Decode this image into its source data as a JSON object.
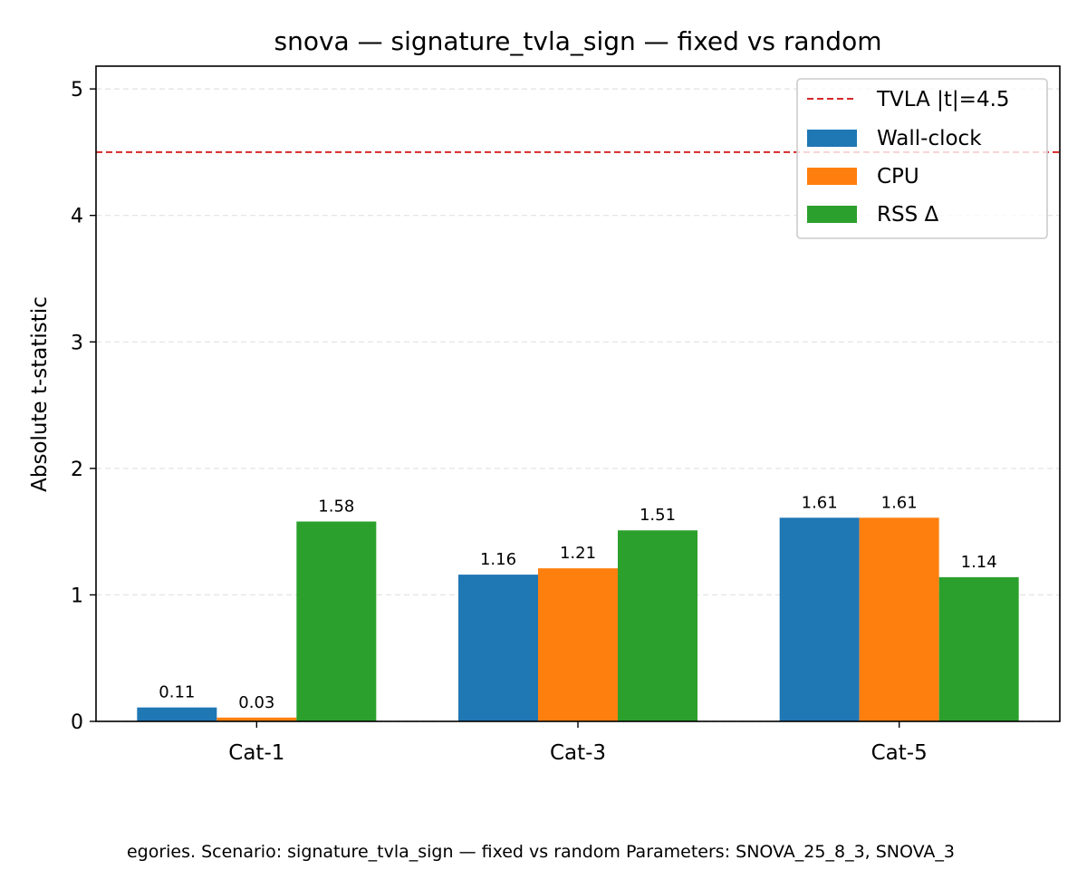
{
  "chart_data": {
    "type": "bar",
    "title": "snova — signature_tvla_sign — fixed vs random",
    "ylabel": "Absolute t-statistic",
    "xlabel": "",
    "categories": [
      "Cat-1",
      "Cat-3",
      "Cat-5"
    ],
    "series": [
      {
        "name": "Wall-clock",
        "values": [
          0.11,
          1.16,
          1.61
        ],
        "labels": [
          "0.11",
          "1.16",
          "1.61"
        ],
        "color": "#1f77b4"
      },
      {
        "name": "CPU",
        "values": [
          0.03,
          1.21,
          1.61
        ],
        "labels": [
          "0.03",
          "1.21",
          "1.61"
        ],
        "color": "#ff7f0e"
      },
      {
        "name": "RSS Δ",
        "values": [
          1.58,
          1.51,
          1.14
        ],
        "labels": [
          "1.58",
          "1.51",
          "1.14"
        ],
        "color": "#2ca02c"
      }
    ],
    "threshold": {
      "label": "TVLA |t|=4.5",
      "value": 4.5,
      "color": "#d62728",
      "style": "dashed"
    },
    "ylim": [
      0,
      5.18
    ],
    "yticks": [
      0,
      1,
      2,
      3,
      4,
      5
    ],
    "grid": "y dashed",
    "legend_position": "top-right",
    "caption": "egories. Scenario: signature_tvla_sign — fixed vs random Parameters: SNOVA_25_8_3, SNOVA_3"
  }
}
